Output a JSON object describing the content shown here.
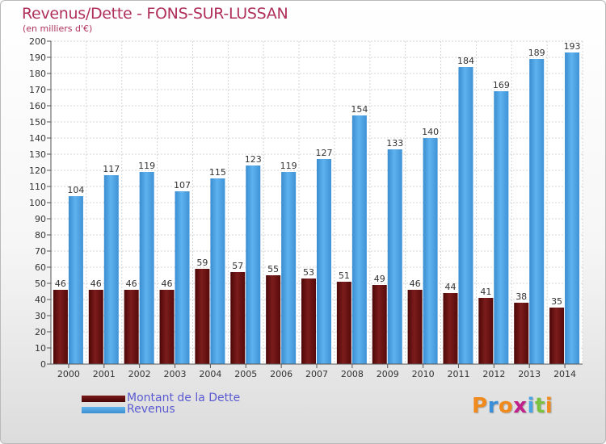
{
  "header": {
    "title": "Revenus/Dette - FONS-SUR-LUSSAN",
    "subtitle": "(en milliers d'€)"
  },
  "chart_data": {
    "type": "bar",
    "title": "Revenus/Dette - FONS-SUR-LUSSAN",
    "ylabel": "(en milliers d'€)",
    "xlabel": "",
    "ylim": [
      0,
      200
    ],
    "ytick_step": 10,
    "grid": true,
    "legend_position": "bottom-left",
    "categories": [
      "2000",
      "2001",
      "2002",
      "2003",
      "2004",
      "2005",
      "2006",
      "2007",
      "2008",
      "2009",
      "2010",
      "2011",
      "2012",
      "2013",
      "2014"
    ],
    "series": [
      {
        "name": "Montant de la Dette",
        "color": "#6a1010",
        "values": [
          46,
          46,
          46,
          46,
          59,
          57,
          55,
          53,
          51,
          49,
          46,
          44,
          41,
          38,
          35
        ]
      },
      {
        "name": "Revenus",
        "color": "#4aa3e3",
        "values": [
          104,
          117,
          119,
          107,
          115,
          123,
          119,
          127,
          154,
          133,
          140,
          184,
          169,
          189,
          193
        ]
      }
    ]
  },
  "logo": {
    "text": "Proxiti",
    "colors": [
      "#f08a1c",
      "#3a8fd8",
      "#f08a1c",
      "#c0208a",
      "#4aa3e3",
      "#7cc242",
      "#f08a1c"
    ]
  }
}
